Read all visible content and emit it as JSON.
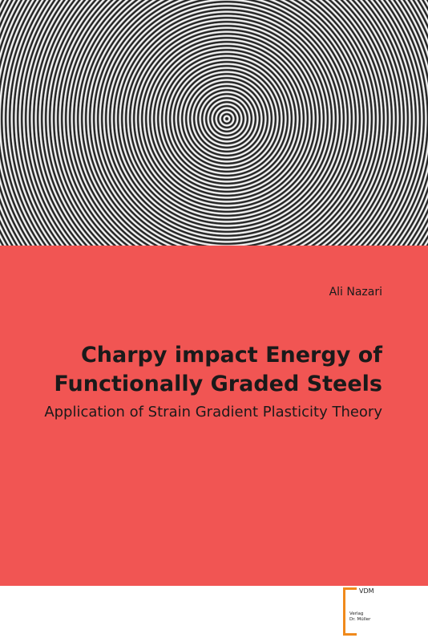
{
  "cover": {
    "author": "Ali Nazari",
    "title_lines": [
      "Charpy impact Energy of",
      "Functionally Graded Steels"
    ],
    "subtitle": "Application of Strain Gradient Plasticity Theory",
    "publisher": {
      "logo": "VDM",
      "line1": "Verlag",
      "line2": "Dr. Müller"
    }
  }
}
